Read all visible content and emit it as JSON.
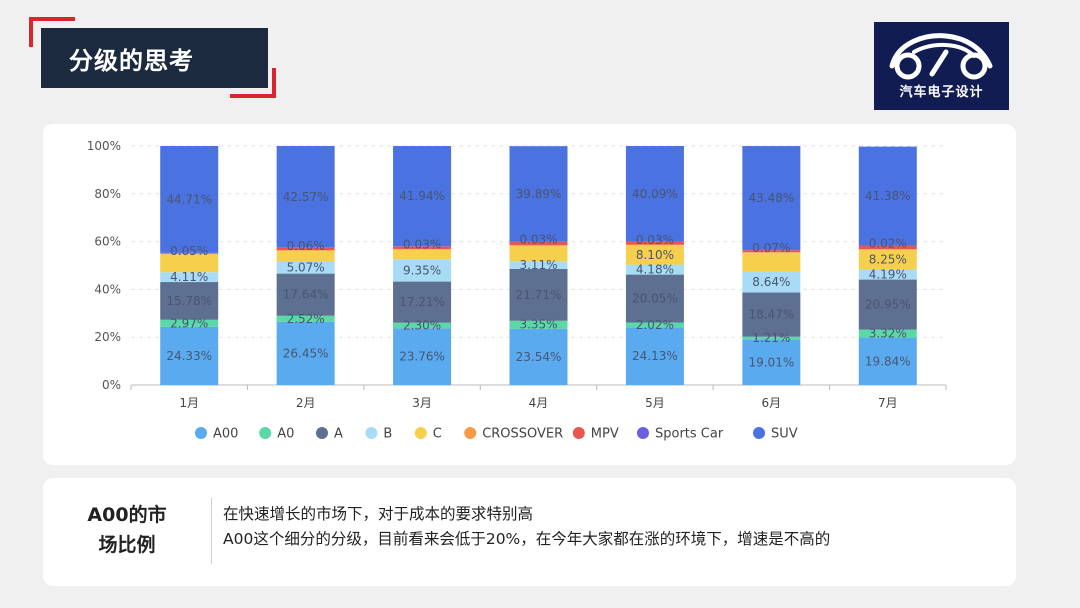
{
  "page": {
    "title": "分级的思考"
  },
  "logo": {
    "text": "汽车电子设计"
  },
  "chart_data": {
    "type": "bar",
    "stacked": true,
    "categories": [
      "1月",
      "2月",
      "3月",
      "4月",
      "5月",
      "6月",
      "7月"
    ],
    "ylim": [
      0,
      100
    ],
    "yticks": [
      "0%",
      "20%",
      "40%",
      "60%",
      "80%",
      "100%"
    ],
    "grid": true,
    "legend_position": "bottom",
    "series": [
      {
        "name": "A00",
        "color": "#5aaaf0",
        "values": [
          24.33,
          26.45,
          23.76,
          23.54,
          24.13,
          19.01,
          19.84
        ],
        "labels": [
          "24.33%",
          "26.45%",
          "23.76%",
          "23.54%",
          "24.13%",
          "19.01%",
          "19.84%"
        ]
      },
      {
        "name": "A0",
        "color": "#5ad8a6",
        "values": [
          2.97,
          2.52,
          2.3,
          3.35,
          2.02,
          1.21,
          3.32
        ],
        "labels": [
          "2.97%",
          "2.52%",
          "2.30%",
          "3.35%",
          "2.02%",
          "1.21%",
          "3.32%"
        ]
      },
      {
        "name": "A",
        "color": "#5d7092",
        "values": [
          15.78,
          17.64,
          17.21,
          21.71,
          20.05,
          18.47,
          20.95
        ],
        "labels": [
          "15.78%",
          "17.64%",
          "17.21%",
          "21.71%",
          "20.05%",
          "18.47%",
          "20.95%"
        ]
      },
      {
        "name": "B",
        "color": "#a8dcf6",
        "values": [
          4.11,
          5.07,
          9.35,
          3.11,
          4.18,
          8.64,
          4.19
        ],
        "labels": [
          "4.11%",
          "5.07%",
          "9.35%",
          "3.11%",
          "4.18%",
          "8.64%",
          "4.19%"
        ]
      },
      {
        "name": "C",
        "color": "#f6d04d",
        "values": [
          7.5,
          4.5,
          4.0,
          6.5,
          8.1,
          8.0,
          8.25
        ],
        "labels": [
          "",
          "",
          "",
          "",
          "8.10%",
          "",
          "8.25%"
        ]
      },
      {
        "name": "CROSSOVER",
        "color": "#f89a4a",
        "values": [
          0.3,
          0.3,
          0.3,
          0.3,
          0.3,
          0.3,
          0.3
        ],
        "labels": [
          "",
          "",
          "",
          "",
          "",
          "",
          ""
        ]
      },
      {
        "name": "MPV",
        "color": "#e8574f",
        "values": [
          0.25,
          0.9,
          1.1,
          1.5,
          1.1,
          0.8,
          1.5
        ],
        "labels": [
          "",
          "",
          "",
          "",
          "",
          "",
          ""
        ]
      },
      {
        "name": "Sports Car",
        "color": "#6b5fe0",
        "values": [
          0.05,
          0.06,
          0.03,
          0.03,
          0.03,
          0.07,
          0.02
        ],
        "labels": [
          "0.05%",
          "0.06%",
          "0.03%",
          "0.03%",
          "0.03%",
          "0.07%",
          "0.02%"
        ]
      },
      {
        "name": "SUV",
        "color": "#4a72e0",
        "values": [
          44.71,
          42.57,
          41.94,
          39.89,
          40.09,
          43.48,
          41.38
        ],
        "labels": [
          "44.71%",
          "42.57%",
          "41.94%",
          "39.89%",
          "40.09%",
          "43.48%",
          "41.38%"
        ]
      }
    ]
  },
  "summary": {
    "title_line1": "A00的市",
    "title_line2": "场比例",
    "line1": "在快速增长的市场下，对于成本的要求特别高",
    "line2": "A00这个细分的分级，目前看来会低于20%，在今年大家都在涨的环境下，增速是不高的"
  }
}
